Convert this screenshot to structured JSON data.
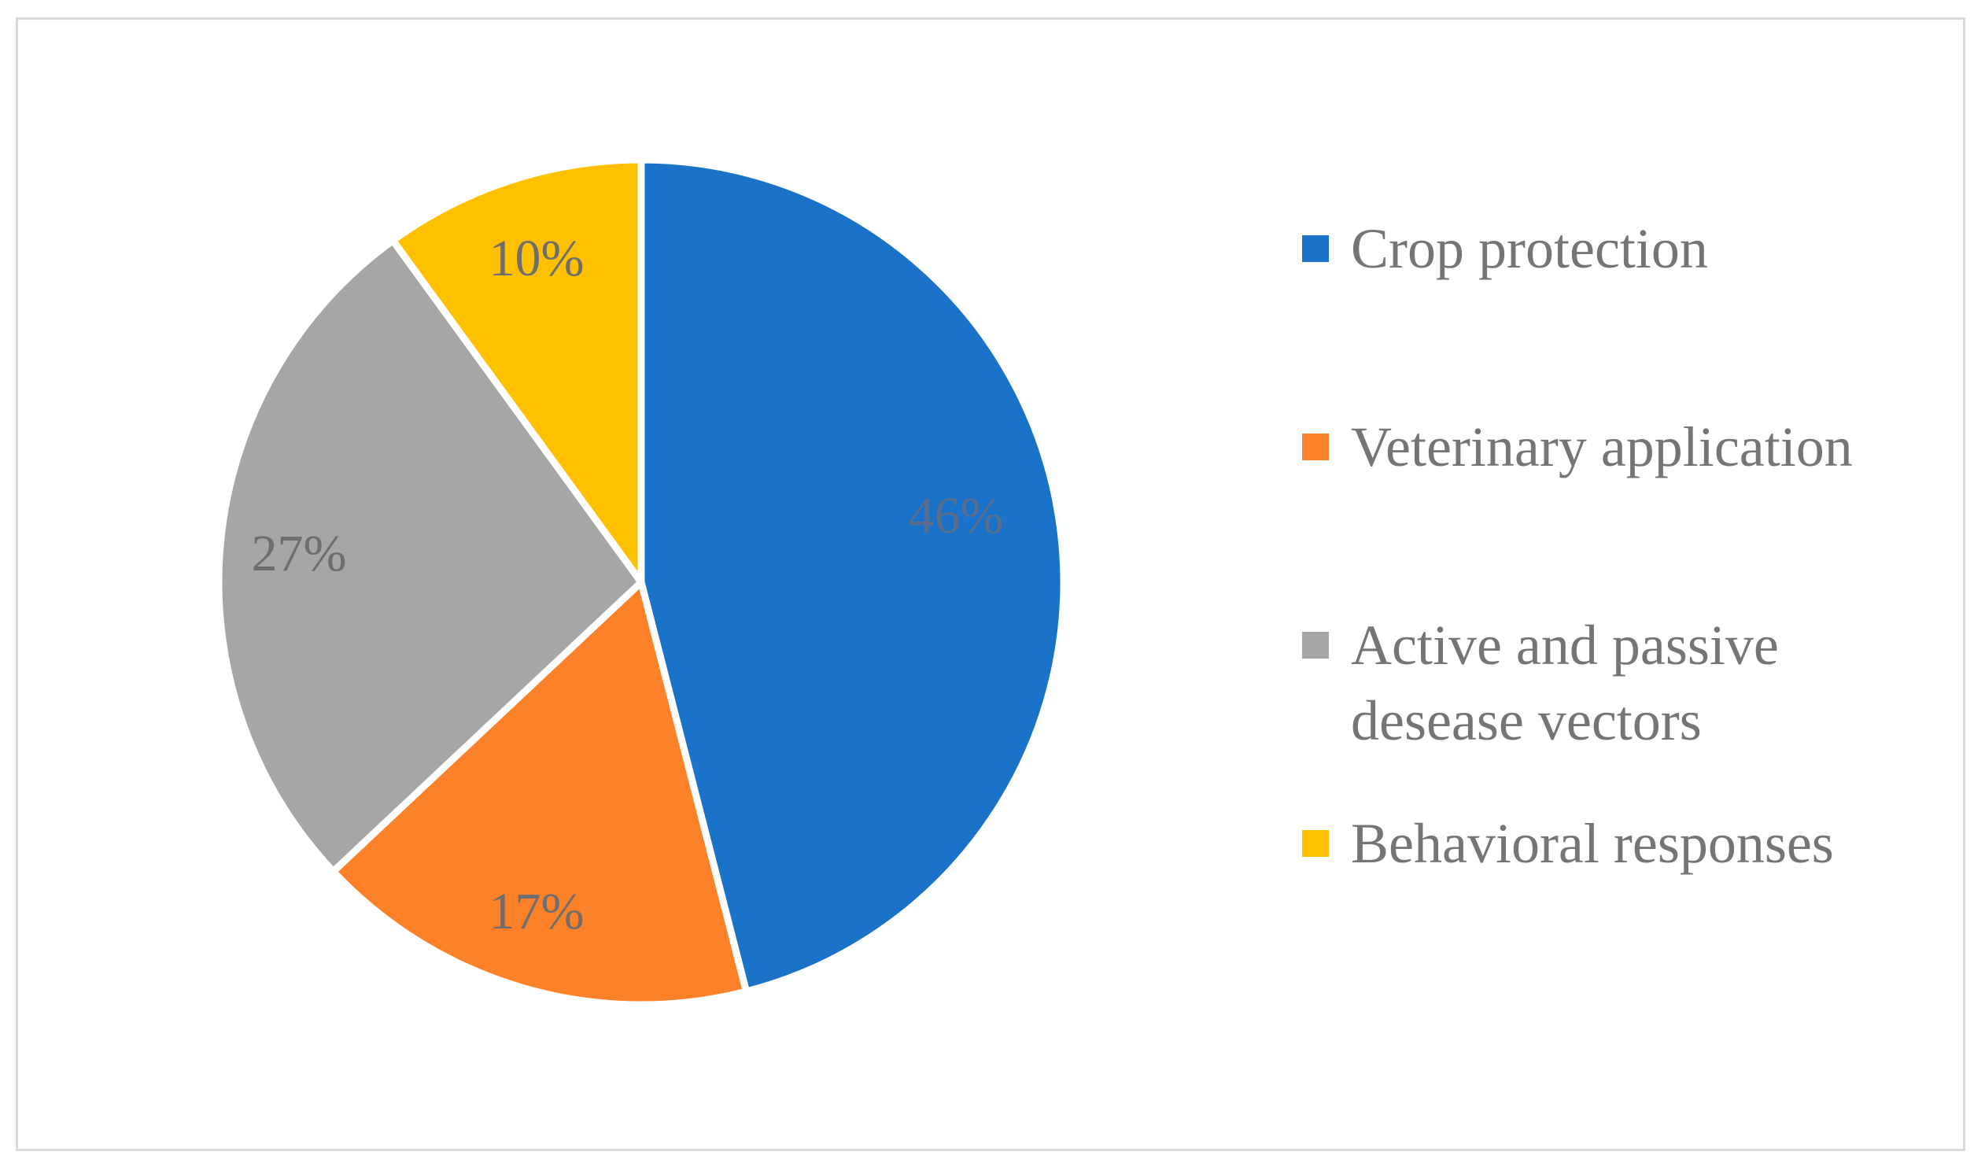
{
  "chart_data": {
    "type": "pie",
    "title": "",
    "start_angle": "12 o'clock, clockwise",
    "slices": [
      {
        "name": "Crop protection",
        "value": 46,
        "label": "46%",
        "color": "#1a73c8",
        "label_color": "#5a6f8c"
      },
      {
        "name": "Veterinary application",
        "value": 17,
        "label": "17%",
        "color": "#fd8128",
        "label_color": "#6e6e6e"
      },
      {
        "name": "Active and passive desease vectors",
        "value": 27,
        "label": "27%",
        "color": "#a6a6a6",
        "label_color": "#6e6e6e"
      },
      {
        "name": "Behavioral responses",
        "value": 10,
        "label": "10%",
        "color": "#ffc000",
        "label_color": "#6e6e6e"
      }
    ],
    "legend": {
      "placement": "right",
      "entries": [
        {
          "label": "Crop protection",
          "color": "#1a73c8"
        },
        {
          "label": "Veterinary application",
          "color": "#fd8128"
        },
        {
          "label": "Active and passive desease vectors",
          "color": "#a6a6a6"
        },
        {
          "label": "Behavioral responses",
          "color": "#ffc000"
        }
      ]
    }
  }
}
